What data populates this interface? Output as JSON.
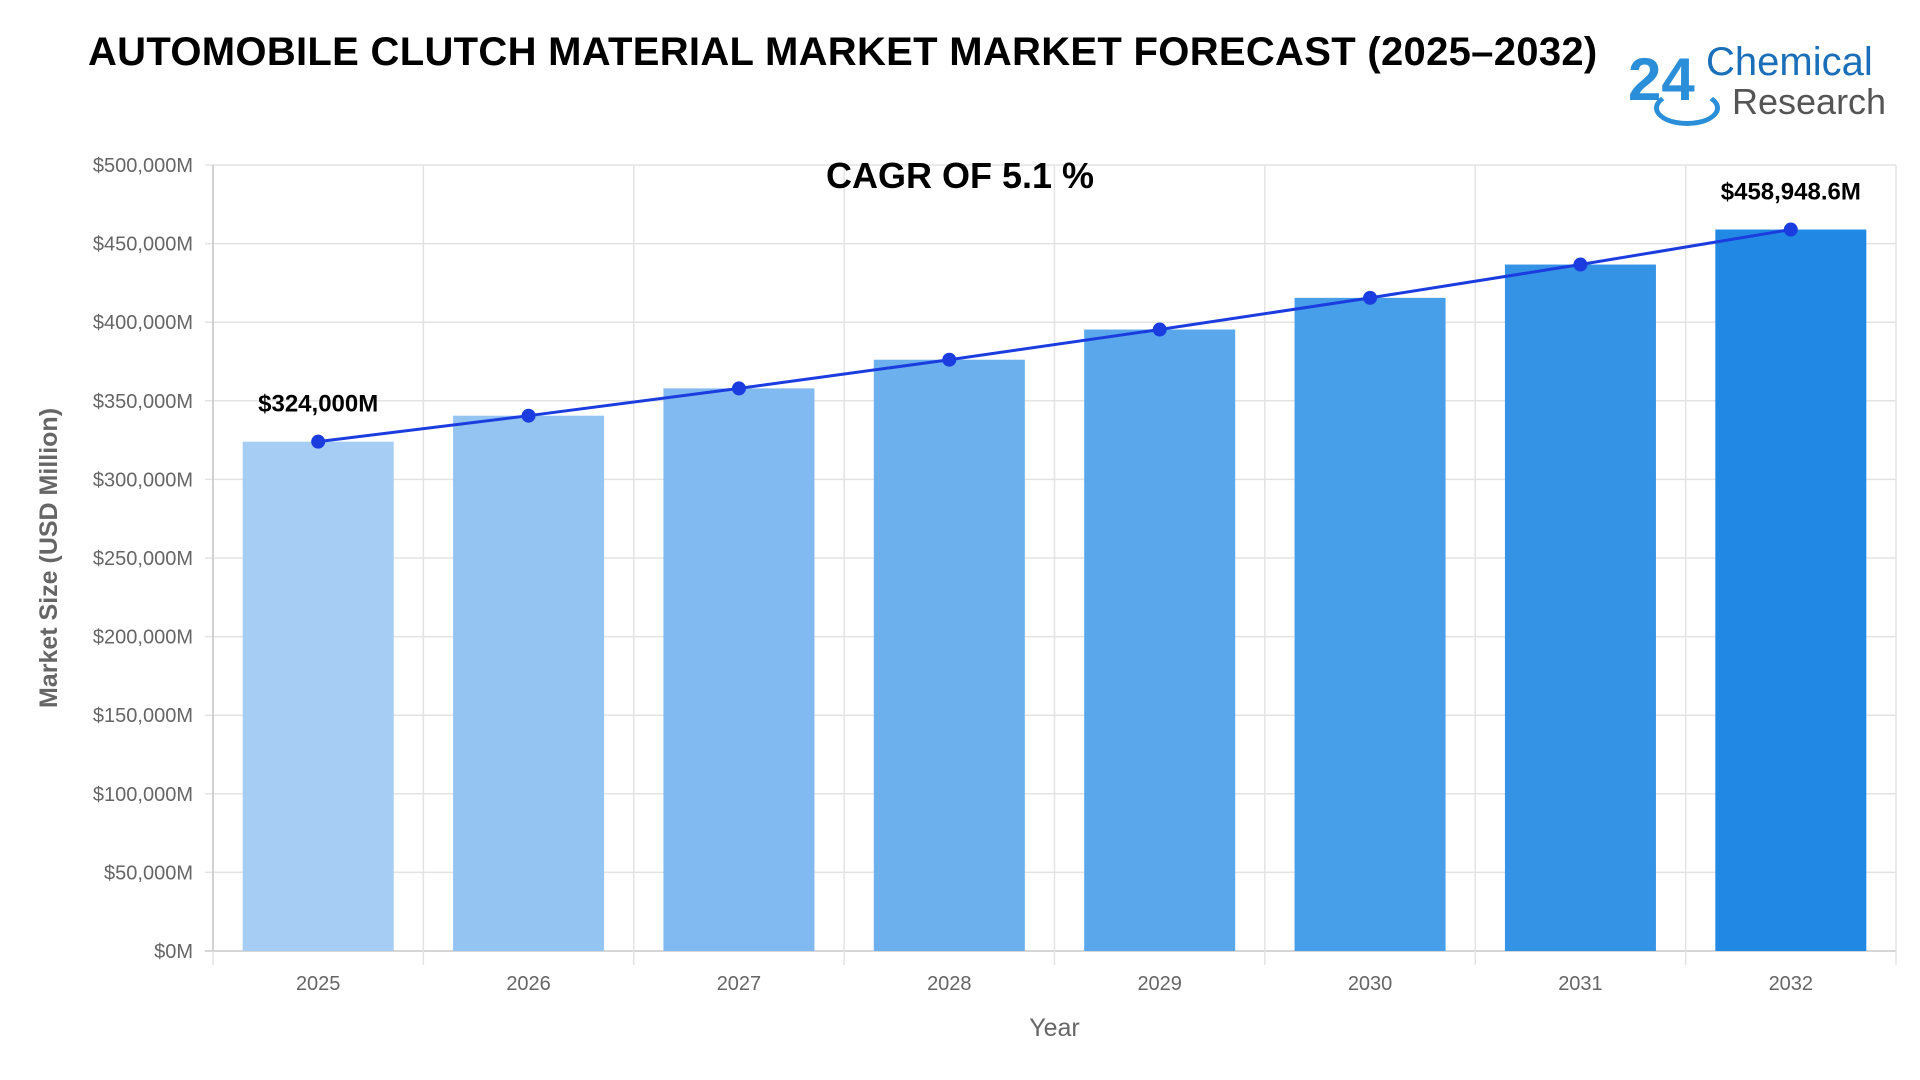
{
  "header": {
    "title": "AUTOMOBILE CLUTCH MATERIAL MARKET MARKET FORECAST (2025–2032)",
    "cagr": "CAGR OF 5.1 %"
  },
  "logo": {
    "number": "24",
    "line1": "Chemical",
    "line2": "Research"
  },
  "colors": {
    "line": "#1b3de0",
    "bars": [
      "#a6cdf4",
      "#93c4f2",
      "#80baf0",
      "#6cb0ee",
      "#5aa7ec",
      "#479ee9",
      "#3593e6",
      "#2189e3"
    ]
  },
  "chart_data": {
    "type": "bar",
    "title": "AUTOMOBILE CLUTCH MATERIAL MARKET MARKET FORECAST (2025–2032)",
    "xlabel": "Year",
    "ylabel": "Market Size (USD Million)",
    "categories": [
      "2025",
      "2026",
      "2027",
      "2028",
      "2029",
      "2030",
      "2031",
      "2032"
    ],
    "values": [
      324000,
      340524,
      357891,
      376143,
      395327,
      415488,
      436678,
      458948.6
    ],
    "line_values": [
      324000,
      340524,
      357891,
      376143,
      395327,
      415488,
      436678,
      458948.6
    ],
    "ylim": [
      0,
      500000
    ],
    "yticks": [
      {
        "value": 0,
        "label": "$0M"
      },
      {
        "value": 50000,
        "label": "$50,000M"
      },
      {
        "value": 100000,
        "label": "$100,000M"
      },
      {
        "value": 150000,
        "label": "$150,000M"
      },
      {
        "value": 200000,
        "label": "$200,000M"
      },
      {
        "value": 250000,
        "label": "$250,000M"
      },
      {
        "value": 300000,
        "label": "$300,000M"
      },
      {
        "value": 350000,
        "label": "$350,000M"
      },
      {
        "value": 400000,
        "label": "$400,000M"
      },
      {
        "value": 450000,
        "label": "$450,000M"
      },
      {
        "value": 500000,
        "label": "$500,000M"
      }
    ],
    "annotations": [
      {
        "index": 0,
        "text": "$324,000M"
      },
      {
        "index": 7,
        "text": "$458,948.6M"
      }
    ],
    "grid": true
  }
}
